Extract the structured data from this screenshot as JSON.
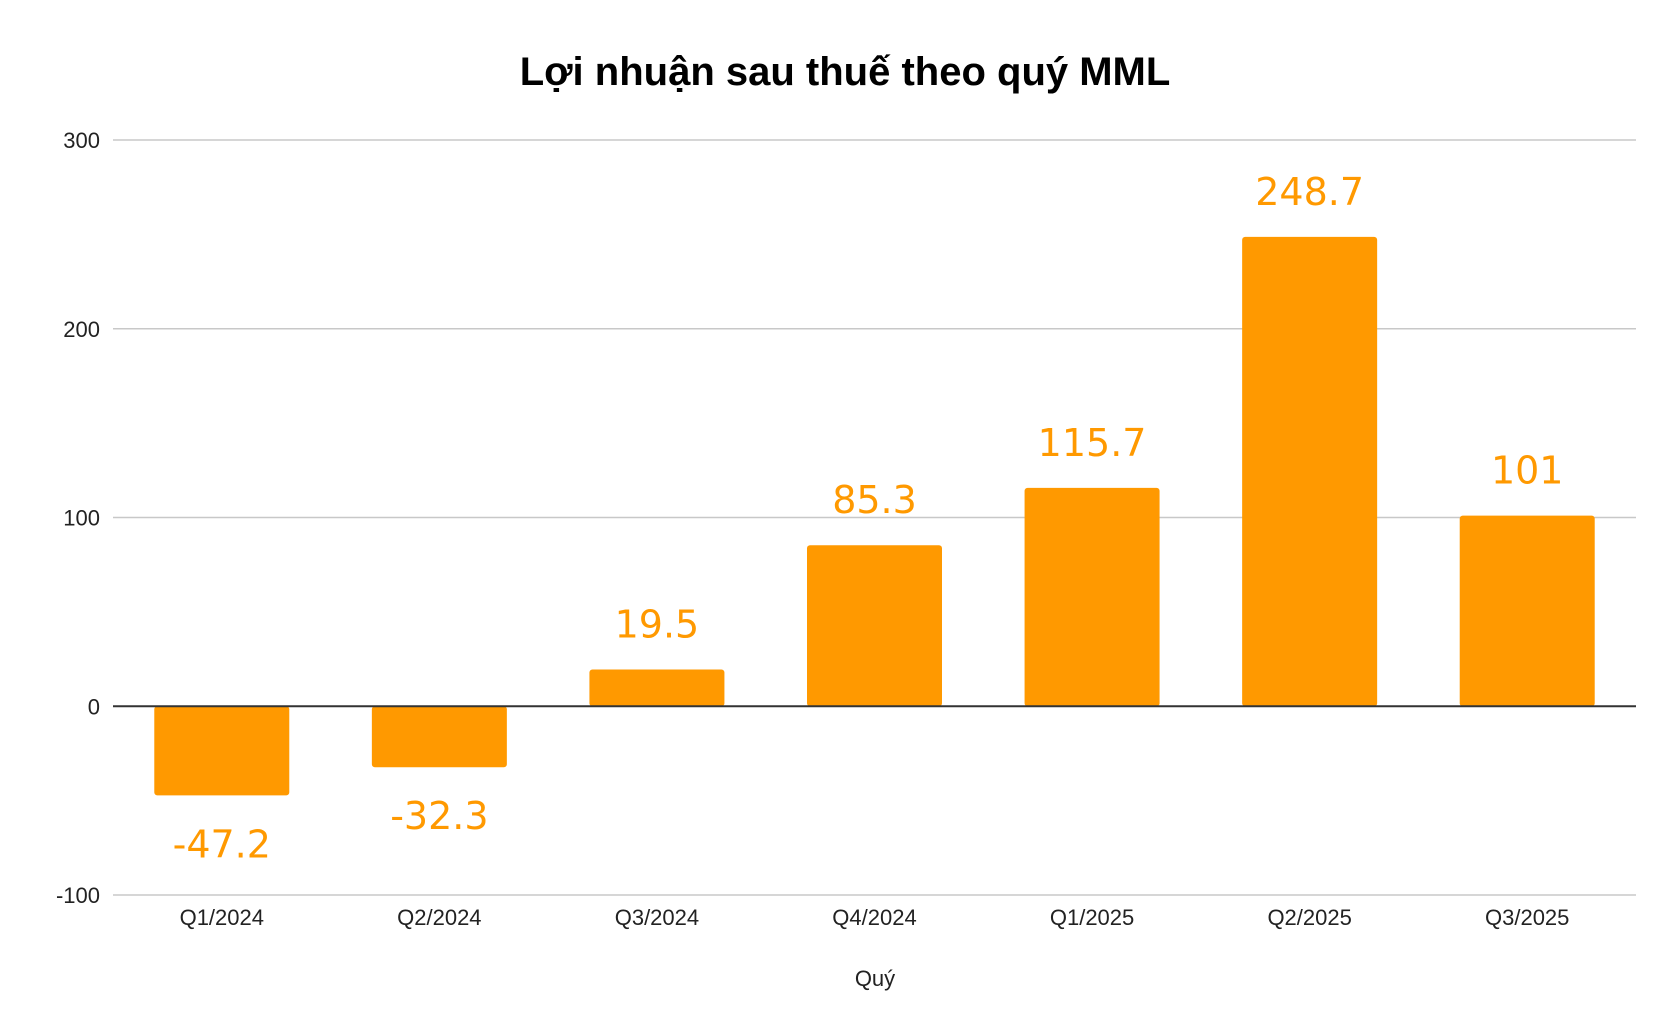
{
  "chart_data": {
    "type": "bar",
    "title": "Lợi nhuận sau thuế theo quý MML",
    "xlabel": "Quý",
    "ylabel": "",
    "categories": [
      "Q1/2024",
      "Q2/2024",
      "Q3/2024",
      "Q4/2024",
      "Q1/2025",
      "Q2/2025",
      "Q3/2025"
    ],
    "values": [
      -47.2,
      -32.3,
      19.5,
      85.3,
      115.7,
      248.7,
      101
    ],
    "data_labels": [
      "-47.2",
      "-32.3",
      "19.5",
      "85.3",
      "115.7",
      "248.7",
      "101"
    ],
    "ylim": [
      -100,
      300
    ],
    "yticks": [
      -100,
      0,
      100,
      200,
      300
    ],
    "ytick_labels": [
      "-100",
      "0",
      "100",
      "200",
      "300"
    ],
    "grid": true,
    "legend": "none",
    "bar_color": "#ff9900",
    "label_color": "#ff9900"
  }
}
